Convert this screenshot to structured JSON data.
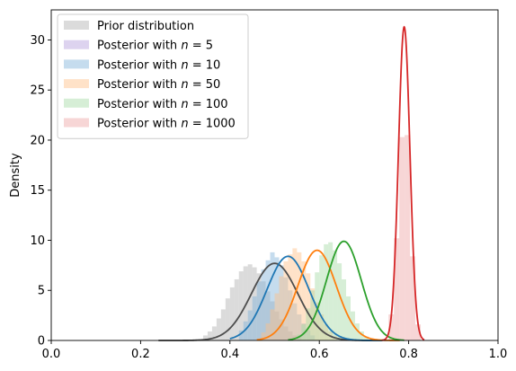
{
  "chart_data": {
    "type": "area",
    "xlabel": "",
    "ylabel": "Density",
    "xlim": [
      0.0,
      1.0
    ],
    "ylim": [
      0,
      33
    ],
    "x_ticks": [
      "0.0",
      "0.2",
      "0.4",
      "0.6",
      "0.8",
      "1.0"
    ],
    "y_ticks": [
      "0",
      "5",
      "10",
      "15",
      "20",
      "25",
      "30"
    ],
    "legend_position": "top-left",
    "grid": false,
    "series": [
      {
        "name": "Prior distribution",
        "legend_prefix": "Prior distribution",
        "legend_n": "",
        "fill_color": "#b0b0b0",
        "line_color": "#4d4d4d",
        "curve": {
          "mean": 0.5,
          "sd": 0.052,
          "peak": 7.7,
          "xmin": 0.24,
          "xmax": 0.74
        },
        "hist": {
          "edges_start": 0.34,
          "bin_width": 0.01,
          "heights": [
            0.5,
            0.9,
            1.4,
            2.2,
            3.1,
            4.2,
            5.3,
            6.1,
            6.9,
            7.4,
            7.6,
            7.3,
            6.7,
            5.9,
            4.9,
            3.9,
            2.9,
            2.1,
            1.4,
            0.9,
            0.5,
            0.3
          ]
        }
      },
      {
        "name": "Posterior with n=5",
        "legend_prefix": "Posterior with ",
        "legend_n": "n",
        "legend_suffix": " = 5",
        "fill_color": "#b39ddb",
        "line_color": "#7e57c2",
        "curve": null,
        "hist": null
      },
      {
        "name": "Posterior with n=10",
        "legend_prefix": "Posterior with ",
        "legend_n": "n",
        "legend_suffix": " = 10",
        "fill_color": "#7fb2d9",
        "line_color": "#1f77b4",
        "curve": {
          "mean": 0.53,
          "sd": 0.047,
          "peak": 8.4,
          "xmin": 0.4,
          "xmax": 0.74
        },
        "hist": {
          "edges_start": 0.42,
          "bin_width": 0.01,
          "heights": [
            1.0,
            1.9,
            3.0,
            4.4,
            5.9,
            7.1,
            8.0,
            8.8,
            8.3,
            7.5,
            6.3,
            5.0,
            3.7,
            2.6,
            1.7,
            1.0,
            0.5
          ]
        }
      },
      {
        "name": "Posterior with n=50",
        "legend_prefix": "Posterior with ",
        "legend_n": "n",
        "legend_suffix": " = 50",
        "fill_color": "#ffbf86",
        "line_color": "#ff7f0e",
        "curve": {
          "mean": 0.595,
          "sd": 0.043,
          "peak": 9.0,
          "xmin": 0.46,
          "xmax": 0.78
        },
        "hist": {
          "edges_start": 0.47,
          "bin_width": 0.01,
          "heights": [
            0.8,
            1.7,
            3.1,
            4.7,
            6.4,
            7.9,
            8.6,
            9.2,
            8.8,
            7.9,
            6.7,
            5.2,
            3.8,
            2.6,
            1.6,
            0.9,
            0.4
          ]
        }
      },
      {
        "name": "Posterior with n=100",
        "legend_prefix": "Posterior with ",
        "legend_n": "n",
        "legend_suffix": " = 100",
        "fill_color": "#a3d9a3",
        "line_color": "#2ca02c",
        "curve": {
          "mean": 0.655,
          "sd": 0.039,
          "peak": 9.9,
          "xmin": 0.53,
          "xmax": 0.79
        },
        "hist": {
          "edges_start": 0.55,
          "bin_width": 0.01,
          "heights": [
            0.6,
            1.6,
            3.2,
            5.0,
            6.8,
            8.5,
            9.6,
            9.8,
            9.0,
            7.7,
            6.1,
            4.4,
            2.9,
            1.7,
            0.9,
            0.4
          ]
        }
      },
      {
        "name": "Posterior with n=1000",
        "legend_prefix": "Posterior with ",
        "legend_n": "n",
        "legend_suffix": " = 1000",
        "fill_color": "#eda3a3",
        "line_color": "#d62728",
        "curve": {
          "mean": 0.79,
          "sd": 0.0128,
          "peak": 31.3,
          "xmin": 0.74,
          "xmax": 0.835
        },
        "hist": {
          "edges_start": 0.755,
          "bin_width": 0.012,
          "heights": [
            2.6,
            10.2,
            20.3,
            20.5,
            8.4,
            1.6
          ]
        }
      }
    ]
  }
}
